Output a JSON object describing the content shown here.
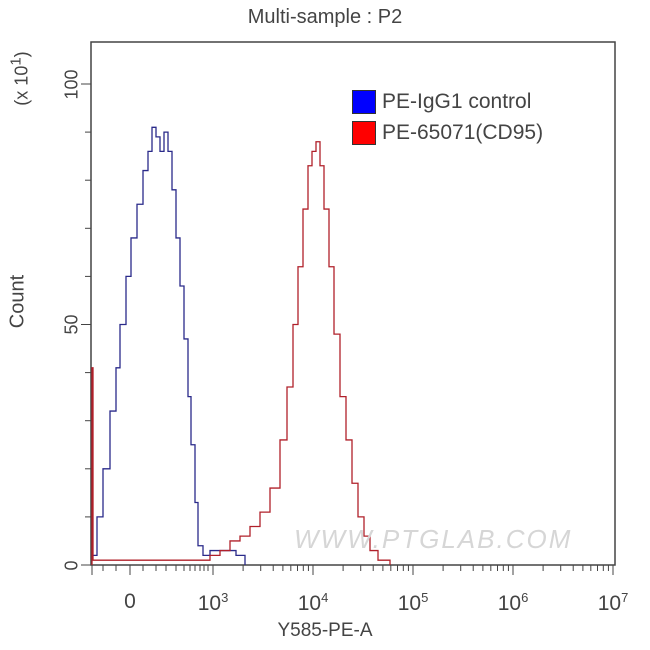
{
  "chart_data": {
    "type": "line",
    "title": "Multi-sample : P2",
    "xlabel": "Y585-PE-A",
    "ylabel": "Count",
    "y_scale_label": "(x 10^1)",
    "x_scale": "biexponential (log above 10^3)",
    "x_tick_labels": [
      "0",
      "10^3",
      "10^4",
      "10^5",
      "10^6",
      "10^7"
    ],
    "y_tick_labels": [
      "0",
      "50",
      "100"
    ],
    "ylim": [
      0,
      100
    ],
    "grid": false,
    "legend_position": "upper right",
    "watermark": "WWW.PTGLAB.COM",
    "series": [
      {
        "name": "PE-IgG1 control",
        "color": "#0000ff",
        "peak_x": "~2x10^2 (near 0-10^3 region)",
        "peak_count": 90,
        "points": [
          [
            92,
            2
          ],
          [
            97,
            10
          ],
          [
            103,
            20
          ],
          [
            110,
            32
          ],
          [
            116,
            41
          ],
          [
            120,
            50
          ],
          [
            126,
            60
          ],
          [
            131,
            68
          ],
          [
            137,
            75
          ],
          [
            143,
            82
          ],
          [
            148,
            86
          ],
          [
            152,
            91
          ],
          [
            156,
            89
          ],
          [
            160,
            86
          ],
          [
            164,
            90
          ],
          [
            168,
            86
          ],
          [
            172,
            78
          ],
          [
            176,
            68
          ],
          [
            180,
            58
          ],
          [
            184,
            47
          ],
          [
            188,
            35
          ],
          [
            191,
            25
          ],
          [
            195,
            13
          ],
          [
            198,
            4
          ],
          [
            203,
            2
          ],
          [
            210,
            3
          ],
          [
            220,
            3
          ],
          [
            230,
            3
          ],
          [
            236,
            2
          ],
          [
            245,
            0
          ]
        ]
      },
      {
        "name": "PE-65071(CD95)",
        "color": "#ff0000",
        "peak_x": "~1x10^4",
        "peak_count": 88,
        "points": [
          [
            92,
            0
          ],
          [
            92,
            41
          ],
          [
            93,
            1
          ],
          [
            110,
            1
          ],
          [
            130,
            1
          ],
          [
            150,
            1
          ],
          [
            170,
            1
          ],
          [
            190,
            1
          ],
          [
            200,
            1
          ],
          [
            210,
            2
          ],
          [
            220,
            3
          ],
          [
            230,
            5
          ],
          [
            240,
            6
          ],
          [
            250,
            8
          ],
          [
            260,
            11
          ],
          [
            270,
            16
          ],
          [
            280,
            26
          ],
          [
            287,
            37
          ],
          [
            293,
            50
          ],
          [
            298,
            62
          ],
          [
            303,
            74
          ],
          [
            308,
            83
          ],
          [
            312,
            86
          ],
          [
            316,
            88
          ],
          [
            320,
            83
          ],
          [
            324,
            74
          ],
          [
            329,
            62
          ],
          [
            334,
            48
          ],
          [
            340,
            35
          ],
          [
            346,
            26
          ],
          [
            352,
            17
          ],
          [
            358,
            10
          ],
          [
            364,
            6
          ],
          [
            370,
            3
          ],
          [
            378,
            1
          ],
          [
            390,
            0
          ]
        ]
      }
    ]
  },
  "legend": {
    "items": [
      {
        "label": "PE-IgG1 control",
        "color": "#0000ff"
      },
      {
        "label": "PE-65071(CD95)",
        "color": "#ff0000"
      }
    ]
  },
  "axes": {
    "x_ticks": [
      {
        "base": "0",
        "exp": ""
      },
      {
        "base": "10",
        "exp": "3"
      },
      {
        "base": "10",
        "exp": "4"
      },
      {
        "base": "10",
        "exp": "5"
      },
      {
        "base": "10",
        "exp": "6"
      },
      {
        "base": "10",
        "exp": "7"
      }
    ],
    "y_ticks": [
      "100",
      "50",
      "0"
    ]
  }
}
